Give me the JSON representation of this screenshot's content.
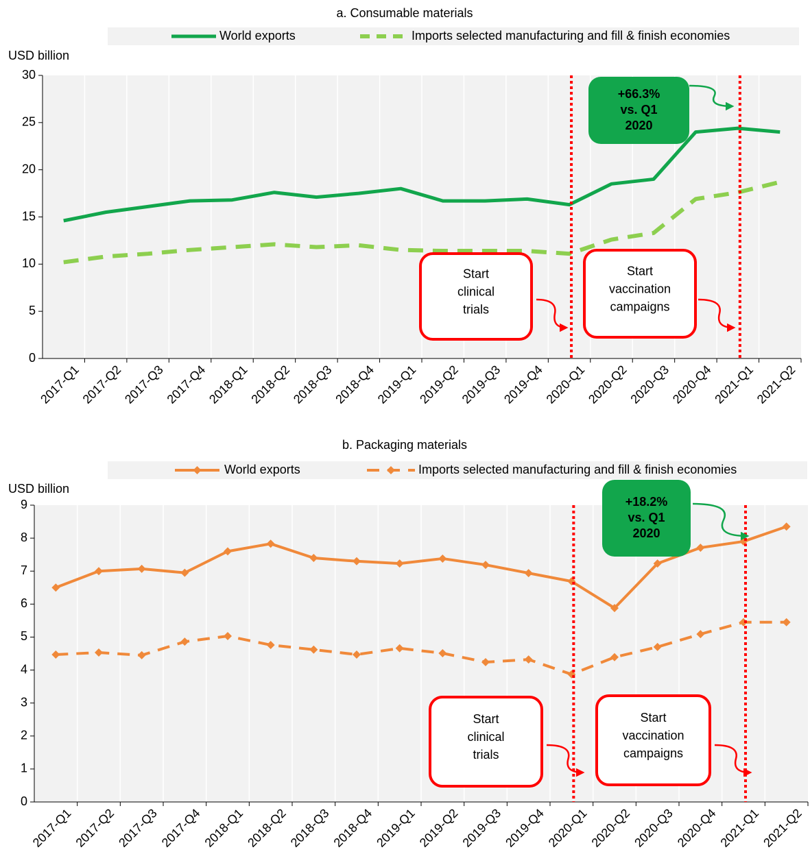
{
  "chart_data": [
    {
      "type": "line",
      "title": "a. Consumable materials",
      "ylabel": "USD billion",
      "categories": [
        "2017-Q1",
        "2017-Q2",
        "2017-Q3",
        "2017-Q4",
        "2018-Q1",
        "2018-Q2",
        "2018-Q3",
        "2018-Q4",
        "2019-Q1",
        "2019-Q2",
        "2019-Q3",
        "2019-Q4",
        "2020-Q1",
        "2020-Q2",
        "2020-Q3",
        "2020-Q4",
        "2021-Q1",
        "2021-Q2"
      ],
      "series": [
        {
          "name": "World exports",
          "color": "#12a64c",
          "linestyle": "solid",
          "marker": "none",
          "values": [
            14.6,
            15.5,
            16.1,
            16.7,
            16.8,
            17.6,
            17.1,
            17.5,
            18.0,
            16.7,
            16.7,
            16.9,
            16.3,
            18.5,
            19.0,
            24.0,
            24.4,
            24.0
          ]
        },
        {
          "name": "Imports selected manufacturing and fill & finish economies",
          "color": "#8dcf4f",
          "linestyle": "dashed",
          "marker": "none",
          "values": [
            10.2,
            10.8,
            11.1,
            11.5,
            11.8,
            12.1,
            11.8,
            12.0,
            11.5,
            11.4,
            11.4,
            11.4,
            11.1,
            12.6,
            13.3,
            16.9,
            17.6,
            18.7
          ]
        }
      ],
      "ylim": [
        0,
        30
      ],
      "yticks": [
        0,
        5,
        10,
        15,
        20,
        25,
        30
      ],
      "vlines": [
        "2020-Q1",
        "2021-Q1"
      ],
      "annotations": [
        {
          "lines": [
            "+66.3%",
            "vs. Q1",
            "2020"
          ],
          "color": "#12a64c",
          "filled": true
        },
        {
          "lines": [
            "Start",
            "clinical",
            "trials"
          ],
          "color": "#ff0000",
          "filled": false
        },
        {
          "lines": [
            "Start",
            "vaccination",
            "campaigns"
          ],
          "color": "#ff0000",
          "filled": false
        }
      ]
    },
    {
      "type": "line",
      "title": "b. Packaging materials",
      "ylabel": "USD billion",
      "categories": [
        "2017-Q1",
        "2017-Q2",
        "2017-Q3",
        "2017-Q4",
        "2018-Q1",
        "2018-Q2",
        "2018-Q3",
        "2018-Q4",
        "2019-Q1",
        "2019-Q2",
        "2019-Q3",
        "2019-Q4",
        "2020-Q1",
        "2020-Q2",
        "2020-Q3",
        "2020-Q4",
        "2021-Q1",
        "2021-Q2"
      ],
      "series": [
        {
          "name": "World exports",
          "color": "#f0893a",
          "linestyle": "solid",
          "marker": "diamond",
          "values": [
            6.5,
            7.0,
            7.07,
            6.95,
            7.6,
            7.83,
            7.4,
            7.3,
            7.23,
            7.38,
            7.19,
            6.94,
            6.69,
            5.88,
            7.23,
            7.71,
            7.9,
            8.35
          ]
        },
        {
          "name": "Imports selected manufacturing and fill & finish economies",
          "color": "#f0893a",
          "linestyle": "dashed",
          "marker": "diamond",
          "values": [
            4.47,
            4.53,
            4.45,
            4.86,
            5.03,
            4.76,
            4.62,
            4.47,
            4.66,
            4.51,
            4.24,
            4.32,
            3.87,
            4.39,
            4.7,
            5.09,
            5.45,
            5.45
          ]
        }
      ],
      "ylim": [
        0,
        9
      ],
      "yticks": [
        0,
        1,
        2,
        3,
        4,
        5,
        6,
        7,
        8,
        9
      ],
      "vlines": [
        "2020-Q1",
        "2021-Q1"
      ],
      "annotations": [
        {
          "lines": [
            "+18.2%",
            "vs. Q1",
            "2020"
          ],
          "color": "#12a64c",
          "filled": true
        },
        {
          "lines": [
            "Start",
            "clinical",
            "trials"
          ],
          "color": "#ff0000",
          "filled": false
        },
        {
          "lines": [
            "Start",
            "vaccination",
            "campaigns"
          ],
          "color": "#ff0000",
          "filled": false
        }
      ]
    }
  ]
}
